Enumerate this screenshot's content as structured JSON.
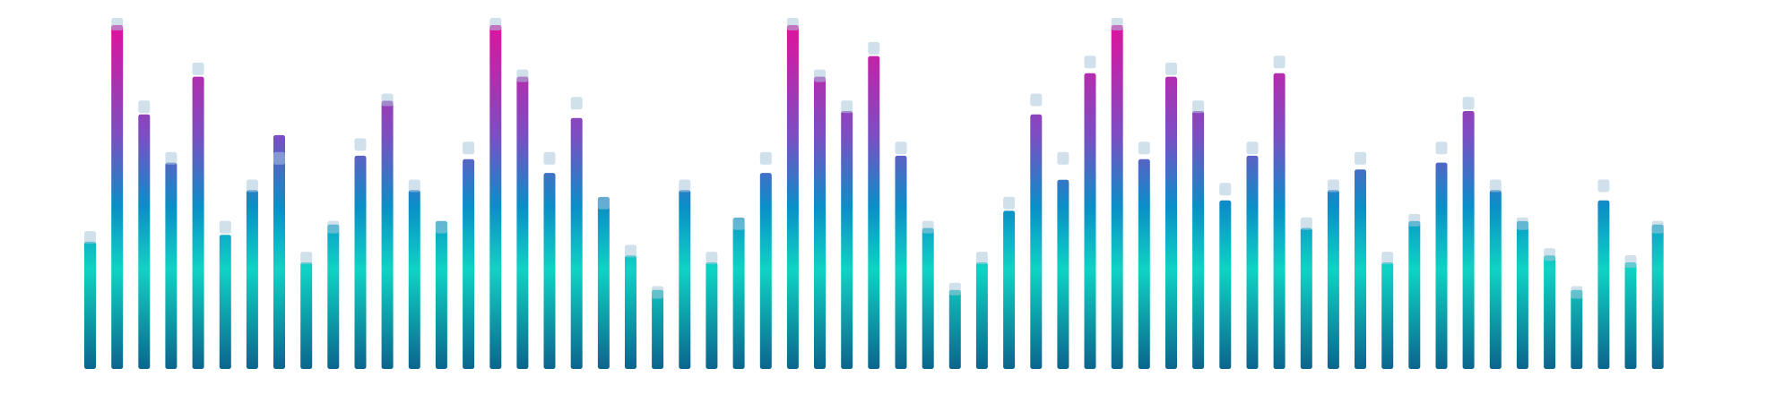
{
  "visualizer": {
    "levels": [
      0.37,
      1.0,
      0.74,
      0.6,
      0.85,
      0.39,
      0.52,
      0.68,
      0.31,
      0.42,
      0.62,
      0.78,
      0.52,
      0.43,
      0.61,
      1.0,
      0.85,
      0.57,
      0.73,
      0.5,
      0.33,
      0.23,
      0.52,
      0.31,
      0.44,
      0.57,
      1.0,
      0.85,
      0.75,
      0.91,
      0.62,
      0.41,
      0.23,
      0.31,
      0.46,
      0.74,
      0.55,
      0.86,
      1.0,
      0.61,
      0.85,
      0.75,
      0.49,
      0.62,
      0.86,
      0.41,
      0.52,
      0.58,
      0.31,
      0.43,
      0.6,
      0.75,
      0.52,
      0.43,
      0.33,
      0.23,
      0.49,
      0.31,
      0.42
    ],
    "peak_levels": [
      0.38,
      1.0,
      0.76,
      0.61,
      0.87,
      0.41,
      0.53,
      0.61,
      0.32,
      0.41,
      0.65,
      0.78,
      0.53,
      0.41,
      0.64,
      1.0,
      0.85,
      0.61,
      0.77,
      0.48,
      0.34,
      0.22,
      0.53,
      0.32,
      0.42,
      0.61,
      1.0,
      0.85,
      0.76,
      0.93,
      0.64,
      0.41,
      0.23,
      0.32,
      0.48,
      0.78,
      0.61,
      0.89,
      1.0,
      0.64,
      0.87,
      0.76,
      0.52,
      0.64,
      0.89,
      0.42,
      0.53,
      0.61,
      0.32,
      0.43,
      0.64,
      0.77,
      0.53,
      0.42,
      0.33,
      0.22,
      0.53,
      0.31,
      0.41
    ],
    "colors": {
      "bottom": "#0b5f8a",
      "low": "#0fd3c4",
      "mid": "#0a8fc7",
      "high": "#7a4fc2",
      "top": "#e0119e",
      "peak_cap": "#a9c9dd"
    }
  }
}
